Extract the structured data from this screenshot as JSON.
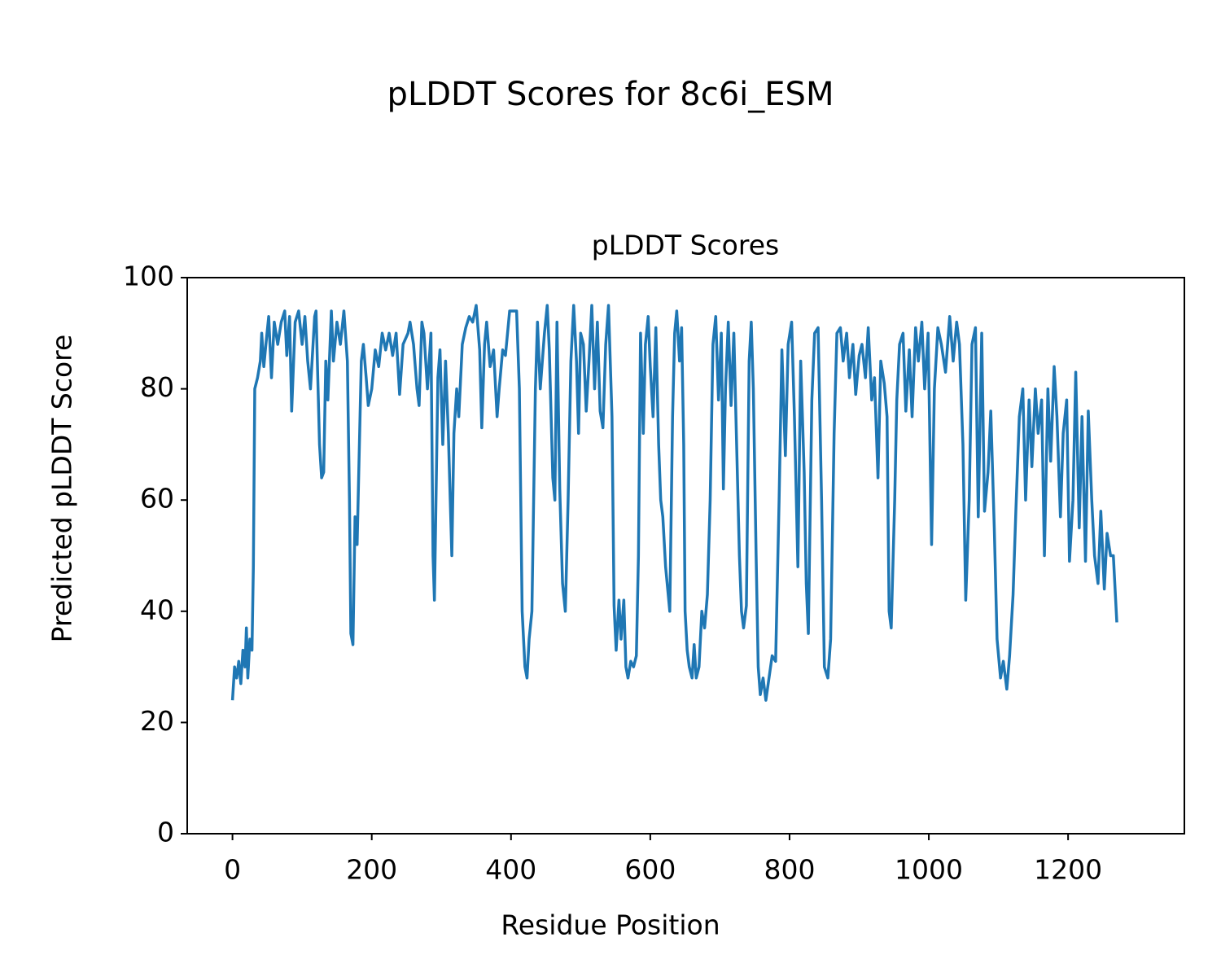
{
  "chart_data": {
    "type": "line",
    "suptitle": "pLDDT Scores for 8c6i_ESM",
    "title": "pLDDT Scores",
    "xlabel": "Residue Position",
    "ylabel": "Predicted pLDDT Score",
    "xlim": [
      -65,
      1367
    ],
    "ylim": [
      0,
      100
    ],
    "xticks": [
      0,
      200,
      400,
      600,
      800,
      1000,
      1200
    ],
    "yticks": [
      0,
      20,
      40,
      60,
      80,
      100
    ],
    "series": [
      {
        "color": "#1f77b4",
        "x": [
          0,
          3,
          6,
          9,
          12,
          15,
          18,
          20,
          22,
          25,
          28,
          30,
          32,
          36,
          40,
          42,
          45,
          48,
          52,
          56,
          60,
          65,
          70,
          75,
          78,
          82,
          85,
          90,
          95,
          100,
          104,
          108,
          112,
          118,
          120,
          125,
          128,
          131,
          134,
          137,
          142,
          145,
          150,
          155,
          160,
          165,
          168,
          170,
          173,
          176,
          179,
          185,
          188,
          192,
          195,
          200,
          205,
          210,
          215,
          220,
          225,
          230,
          235,
          240,
          245,
          252,
          255,
          260,
          265,
          268,
          272,
          275,
          280,
          285,
          288,
          290,
          295,
          298,
          302,
          306,
          310,
          315,
          318,
          322,
          325,
          330,
          335,
          340,
          345,
          350,
          355,
          358,
          362,
          365,
          370,
          375,
          380,
          383,
          388,
          392,
          398,
          403,
          408,
          412,
          416,
          420,
          423,
          426,
          430,
          435,
          438,
          442,
          448,
          452,
          455,
          460,
          463,
          466,
          470,
          474,
          478,
          482,
          486,
          490,
          494,
          497,
          500,
          504,
          508,
          512,
          516,
          520,
          524,
          528,
          532,
          536,
          540,
          545,
          548,
          551,
          555,
          558,
          562,
          565,
          568,
          572,
          576,
          580,
          583,
          586,
          590,
          593,
          597,
          600,
          604,
          608,
          612,
          615,
          618,
          622,
          625,
          628,
          632,
          635,
          638,
          642,
          645,
          648,
          650,
          653,
          656,
          660,
          663,
          666,
          670,
          674,
          678,
          682,
          686,
          690,
          694,
          698,
          702,
          705,
          708,
          712,
          716,
          720,
          724,
          728,
          731,
          734,
          738,
          742,
          745,
          748,
          752,
          755,
          758,
          762,
          766,
          775,
          780,
          785,
          789,
          794,
          798,
          803,
          807,
          812,
          816,
          821,
          824,
          827,
          832,
          836,
          841,
          846,
          850,
          855,
          859,
          864,
          868,
          873,
          877,
          882,
          886,
          891,
          895,
          900,
          904,
          909,
          913,
          918,
          922,
          927,
          931,
          936,
          940,
          943,
          946,
          951,
          954,
          958,
          963,
          967,
          972,
          976,
          981,
          985,
          990,
          994,
          999,
          1004,
          1008,
          1013,
          1018,
          1024,
          1030,
          1035,
          1040,
          1044,
          1049,
          1053,
          1058,
          1062,
          1067,
          1071,
          1076,
          1080,
          1085,
          1089,
          1094,
          1098,
          1103,
          1107,
          1112,
          1116,
          1121,
          1125,
          1130,
          1135,
          1139,
          1144,
          1148,
          1153,
          1157,
          1162,
          1166,
          1171,
          1175,
          1180,
          1184,
          1189,
          1193,
          1198,
          1202,
          1207,
          1211,
          1216,
          1220,
          1225,
          1229,
          1234,
          1238,
          1243,
          1247,
          1252,
          1256,
          1261,
          1265,
          1270
        ],
        "values": [
          24,
          30,
          28,
          31,
          27,
          33,
          30,
          37,
          28,
          35,
          33,
          48,
          80,
          82,
          85,
          90,
          84,
          88,
          93,
          82,
          92,
          88,
          92,
          94,
          86,
          93,
          76,
          92,
          94,
          88,
          93,
          85,
          80,
          93,
          94,
          70,
          64,
          65,
          85,
          78,
          94,
          85,
          92,
          88,
          94,
          85,
          60,
          36,
          34,
          57,
          52,
          85,
          88,
          82,
          77,
          80,
          87,
          84,
          90,
          87,
          90,
          86,
          90,
          79,
          88,
          90,
          92,
          88,
          80,
          77,
          92,
          90,
          80,
          90,
          50,
          42,
          82,
          87,
          70,
          85,
          72,
          50,
          72,
          80,
          75,
          88,
          91,
          93,
          92,
          95,
          87,
          73,
          88,
          92,
          84,
          87,
          75,
          80,
          87,
          86,
          94,
          94,
          94,
          80,
          40,
          30,
          28,
          35,
          40,
          80,
          92,
          80,
          90,
          95,
          87,
          64,
          60,
          92,
          62,
          45,
          40,
          60,
          85,
          95,
          85,
          72,
          90,
          88,
          76,
          85,
          95,
          80,
          92,
          76,
          73,
          88,
          95,
          75,
          41,
          33,
          42,
          35,
          42,
          30,
          28,
          31,
          30,
          32,
          50,
          90,
          72,
          88,
          93,
          84,
          75,
          91,
          70,
          60,
          57,
          48,
          44,
          40,
          75,
          90,
          94,
          85,
          91,
          70,
          40,
          33,
          30,
          28,
          34,
          28,
          30,
          40,
          37,
          43,
          60,
          88,
          93,
          78,
          90,
          62,
          80,
          92,
          77,
          90,
          70,
          50,
          40,
          37,
          41,
          85,
          92,
          80,
          50,
          30,
          25,
          28,
          24,
          32,
          31,
          60,
          87,
          68,
          88,
          92,
          75,
          48,
          85,
          65,
          45,
          36,
          78,
          90,
          91,
          60,
          30,
          28,
          35,
          72,
          90,
          91,
          85,
          90,
          82,
          88,
          79,
          86,
          88,
          82,
          91,
          78,
          82,
          64,
          85,
          81,
          75,
          40,
          37,
          60,
          78,
          88,
          90,
          76,
          87,
          75,
          91,
          85,
          92,
          80,
          90,
          52,
          80,
          91,
          88,
          83,
          93,
          85,
          92,
          88,
          70,
          42,
          60,
          88,
          91,
          57,
          90,
          58,
          65,
          76,
          55,
          35,
          28,
          31,
          26,
          32,
          43,
          58,
          75,
          80,
          60,
          78,
          66,
          80,
          72,
          78,
          50,
          80,
          67,
          84,
          75,
          57,
          72,
          78,
          49,
          60,
          83,
          55,
          75,
          49,
          76,
          60,
          50,
          45,
          58,
          44,
          54,
          50,
          50,
          38
        ]
      }
    ]
  }
}
